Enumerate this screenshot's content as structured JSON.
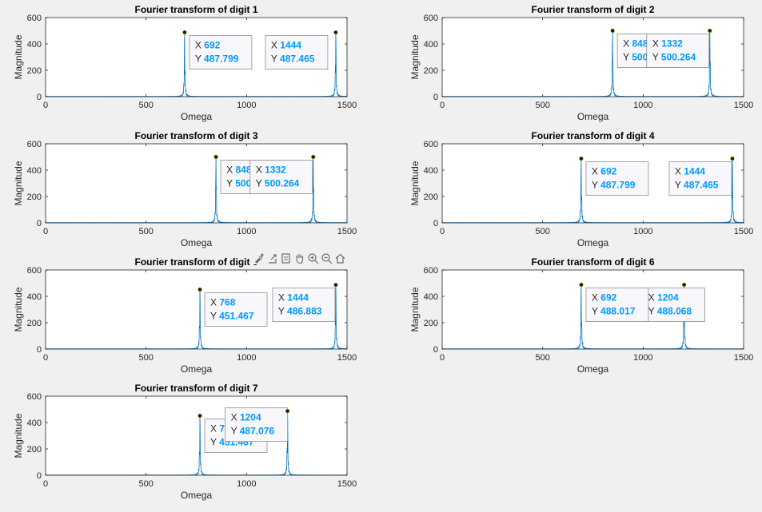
{
  "figure": {
    "x_label": "Omega",
    "y_label": "Magnitude",
    "toolbar": [
      "brush-icon",
      "export-icon",
      "data-cursor-icon",
      "pan-icon",
      "zoom-in-icon",
      "zoom-out-icon",
      "home-icon"
    ]
  },
  "chart_data": [
    {
      "type": "line",
      "title": "Fourier transform of digit 1",
      "xlabel": "Omega",
      "ylabel": "Magnitude",
      "xlim": [
        0,
        1500
      ],
      "ylim": [
        0,
        600
      ],
      "xticks": [
        0,
        500,
        1000,
        1500
      ],
      "yticks": [
        0,
        200,
        400,
        600
      ],
      "peaks": [
        {
          "x": 692,
          "y": 487.799
        },
        {
          "x": 1444,
          "y": 487.465
        }
      ],
      "datatips": [
        {
          "x_label": "X",
          "x_text": "692",
          "y_label": "Y",
          "y_text": "487.799"
        },
        {
          "x_label": "X",
          "x_text": "1444",
          "y_label": "Y",
          "y_text": "487.465"
        }
      ]
    },
    {
      "type": "line",
      "title": "Fourier transform of digit 2",
      "xlabel": "Omega",
      "ylabel": "Magnitude",
      "xlim": [
        0,
        1500
      ],
      "ylim": [
        0,
        600
      ],
      "xticks": [
        0,
        500,
        1000,
        1500
      ],
      "yticks": [
        0,
        200,
        400,
        600
      ],
      "peaks": [
        {
          "x": 848,
          "y": 500.264
        },
        {
          "x": 1332,
          "y": 500.264
        }
      ],
      "datatips": [
        {
          "x_label": "X",
          "x_text": "848",
          "y_label": "Y",
          "y_text": "500.264"
        },
        {
          "x_label": "X",
          "x_text": "1332",
          "y_label": "Y",
          "y_text": "500.264"
        }
      ]
    },
    {
      "type": "line",
      "title": "Fourier transform of digit 3",
      "xlabel": "Omega",
      "ylabel": "Magnitude",
      "xlim": [
        0,
        1500
      ],
      "ylim": [
        0,
        600
      ],
      "xticks": [
        0,
        500,
        1000,
        1500
      ],
      "yticks": [
        0,
        200,
        400,
        600
      ],
      "peaks": [
        {
          "x": 848,
          "y": 500.264
        },
        {
          "x": 1332,
          "y": 500.264
        }
      ],
      "datatips": [
        {
          "x_label": "X",
          "x_text": "848",
          "y_label": "Y",
          "y_text": "500.264"
        },
        {
          "x_label": "X",
          "x_text": "1332",
          "y_label": "Y",
          "y_text": "500.264"
        }
      ]
    },
    {
      "type": "line",
      "title": "Fourier transform of digit 4",
      "xlabel": "Omega",
      "ylabel": "Magnitude",
      "xlim": [
        0,
        1500
      ],
      "ylim": [
        0,
        600
      ],
      "xticks": [
        0,
        500,
        1000,
        1500
      ],
      "yticks": [
        0,
        200,
        400,
        600
      ],
      "peaks": [
        {
          "x": 692,
          "y": 487.799
        },
        {
          "x": 1444,
          "y": 487.465
        }
      ],
      "datatips": [
        {
          "x_label": "X",
          "x_text": "692",
          "y_label": "Y",
          "y_text": "487.799"
        },
        {
          "x_label": "X",
          "x_text": "1444",
          "y_label": "Y",
          "y_text": "487.465"
        }
      ]
    },
    {
      "type": "line",
      "title": "Fourier transform of digit 5",
      "xlabel": "Omega",
      "ylabel": "Magnitude",
      "xlim": [
        0,
        1500
      ],
      "ylim": [
        0,
        600
      ],
      "xticks": [
        0,
        500,
        1000,
        1500
      ],
      "yticks": [
        0,
        200,
        400,
        600
      ],
      "peaks": [
        {
          "x": 768,
          "y": 451.467
        },
        {
          "x": 1444,
          "y": 486.883
        }
      ],
      "datatips": [
        {
          "x_label": "X",
          "x_text": "768",
          "y_label": "Y",
          "y_text": "451.467"
        },
        {
          "x_label": "X",
          "x_text": "1444",
          "y_label": "Y",
          "y_text": "486.883"
        }
      ]
    },
    {
      "type": "line",
      "title": "Fourier transform of digit 6",
      "xlabel": "Omega",
      "ylabel": "Magnitude",
      "xlim": [
        0,
        1500
      ],
      "ylim": [
        0,
        600
      ],
      "xticks": [
        0,
        500,
        1000,
        1500
      ],
      "yticks": [
        0,
        200,
        400,
        600
      ],
      "peaks": [
        {
          "x": 692,
          "y": 488.017
        },
        {
          "x": 1204,
          "y": 488.068
        }
      ],
      "datatips": [
        {
          "x_label": "X",
          "x_text": "1204",
          "y_label": "Y",
          "y_text": "488.068"
        },
        {
          "x_label": "X",
          "x_text": "692",
          "y_label": "Y",
          "y_text": "488.017"
        }
      ]
    },
    {
      "type": "line",
      "title": "Fourier transform of digit 7",
      "xlabel": "Omega",
      "ylabel": "Magnitude",
      "xlim": [
        0,
        1500
      ],
      "ylim": [
        0,
        600
      ],
      "xticks": [
        0,
        500,
        1000,
        1500
      ],
      "yticks": [
        0,
        200,
        400,
        600
      ],
      "peaks": [
        {
          "x": 768,
          "y": 451.467
        },
        {
          "x": 1204,
          "y": 487.076
        }
      ],
      "datatips": [
        {
          "x_label": "X",
          "x_text": "768",
          "y_label": "Y",
          "y_text": "451.467"
        },
        {
          "x_label": "X",
          "x_text": "1204",
          "y_label": "Y",
          "y_text": "487.076"
        }
      ]
    }
  ]
}
